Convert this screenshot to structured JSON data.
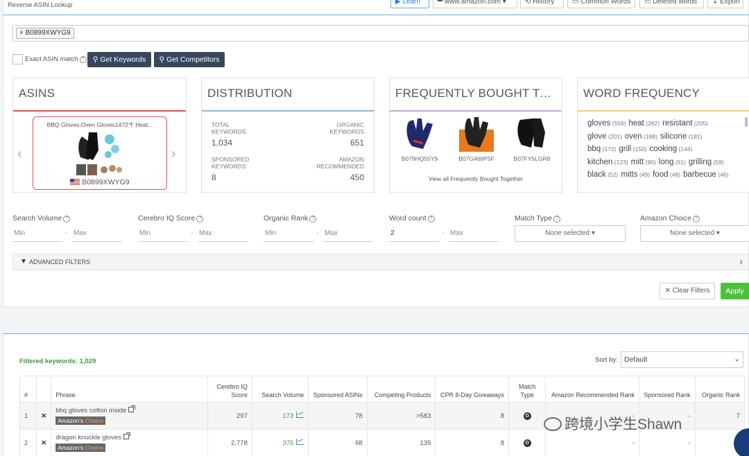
{
  "header": {
    "title": "Reverse ASIN Lookup",
    "buttons": [
      "Learn",
      "www.amazon.com",
      "History",
      "Common Words",
      "Deleted words",
      "Export"
    ]
  },
  "search": {
    "tag": "B0899XWYG9",
    "exact_match_label": "Exact ASIN match",
    "get_keywords": "Get Keywords",
    "get_competitors": "Get Competitors"
  },
  "cards": {
    "asins": {
      "title": "ASINS",
      "product_title": "BBQ Gloves,Oven Gloves1472℉ Heat...",
      "asin": "B0899XWYG9"
    },
    "distribution": {
      "title": "DISTRIBUTION",
      "total_label_1": "TOTAL",
      "total_label_2": "KEYWORDS",
      "total_value": "1,034",
      "organic_label_1": "ORGANIC",
      "organic_label_2": "KEYWORDS",
      "organic_value": "651",
      "sponsored_label_1": "SPONSORED",
      "sponsored_label_2": "KEYWORDS",
      "sponsored_value": "8",
      "amazon_label_1": "AMAZON",
      "amazon_label_2": "RECOMMENDED",
      "amazon_value": "450"
    },
    "fbt": {
      "title": "FREQUENTLY BOUGHT TOG...",
      "items": [
        "B079HQ55Y9",
        "B07G466P5F",
        "B07FY5LGR8"
      ],
      "view_all": "View all Frequently Bought Together"
    },
    "word_frequency": {
      "title": "WORD FREQUENCY",
      "rows": [
        [
          [
            "gloves",
            "(556)"
          ],
          [
            "heat",
            "(282)"
          ],
          [
            "resistant",
            "(205)"
          ]
        ],
        [
          [
            "glove",
            "(201)"
          ],
          [
            "oven",
            "(189)"
          ],
          [
            "silicone",
            "(181)"
          ]
        ],
        [
          [
            "bbq",
            "(172)"
          ],
          [
            "grill",
            "(150)"
          ],
          [
            "cooking",
            "(144)"
          ]
        ],
        [
          [
            "kitchen",
            "(123)"
          ],
          [
            "mitt",
            "(90)"
          ],
          [
            "long",
            "(61)"
          ],
          [
            "grilling",
            "(59)"
          ]
        ],
        [
          [
            "black",
            "(52)"
          ],
          [
            "mitts",
            "(49)"
          ],
          [
            "food",
            "(48)"
          ],
          [
            "barbecue",
            "(46)"
          ]
        ]
      ]
    }
  },
  "filters": {
    "search_volume": "Search Volume",
    "cerebro_iq": "Cerebro IQ Score",
    "organic_rank": "Organic Rank",
    "word_count": "Word count",
    "match_type": "Match Type",
    "amazon_choice": "Amazon Choice",
    "min": "Min",
    "max": "Max",
    "word_count_min_value": "2",
    "none_selected": "None selected",
    "advanced": "ADVANCED FILTERS",
    "clear": "Clear Filters",
    "apply": "Apply"
  },
  "results": {
    "filtered_label": "Filtered keywords: 1,029",
    "sort_by_label": "Sort by:",
    "sort_value": "Default",
    "columns": [
      "#",
      "",
      "Phrase",
      "Cerebro IQ Score",
      "Search Volume",
      "Sponsored ASINs",
      "Competing Products",
      "CPR 8-Day Giveaways",
      "Match Type",
      "Amazon Recommended Rank",
      "Sponsored Rank",
      "Organic Rank"
    ],
    "amazons_label": "Amazon's",
    "choice_label": "Choice",
    "rows": [
      {
        "num": "1",
        "phrase": "bbq gloves cotton inside",
        "iq": "297",
        "sv": "173",
        "sponsored": "78",
        "competing": ">583",
        "cpr": "8",
        "match": "O",
        "amazon_rank": "-",
        "sponsored_rank": "-",
        "organic": "7"
      },
      {
        "num": "2",
        "phrase": "dragon knuckle gloves",
        "iq": "2,778",
        "sv": "375",
        "sponsored": "68",
        "competing": "135",
        "cpr": "8",
        "match": "O",
        "amazon_rank": "-",
        "sponsored_rank": "-",
        "organic": "-"
      }
    ]
  },
  "watermark": "跨境小学生Shawn",
  "colors": {
    "accent_dark": "#37485c",
    "apply_green": "#4cc23a",
    "asins_red": "#e05050",
    "distribution_blue": "#8ab4e8",
    "fbt_purple": "#c9a3d9",
    "word_yellow": "#f0d070"
  }
}
